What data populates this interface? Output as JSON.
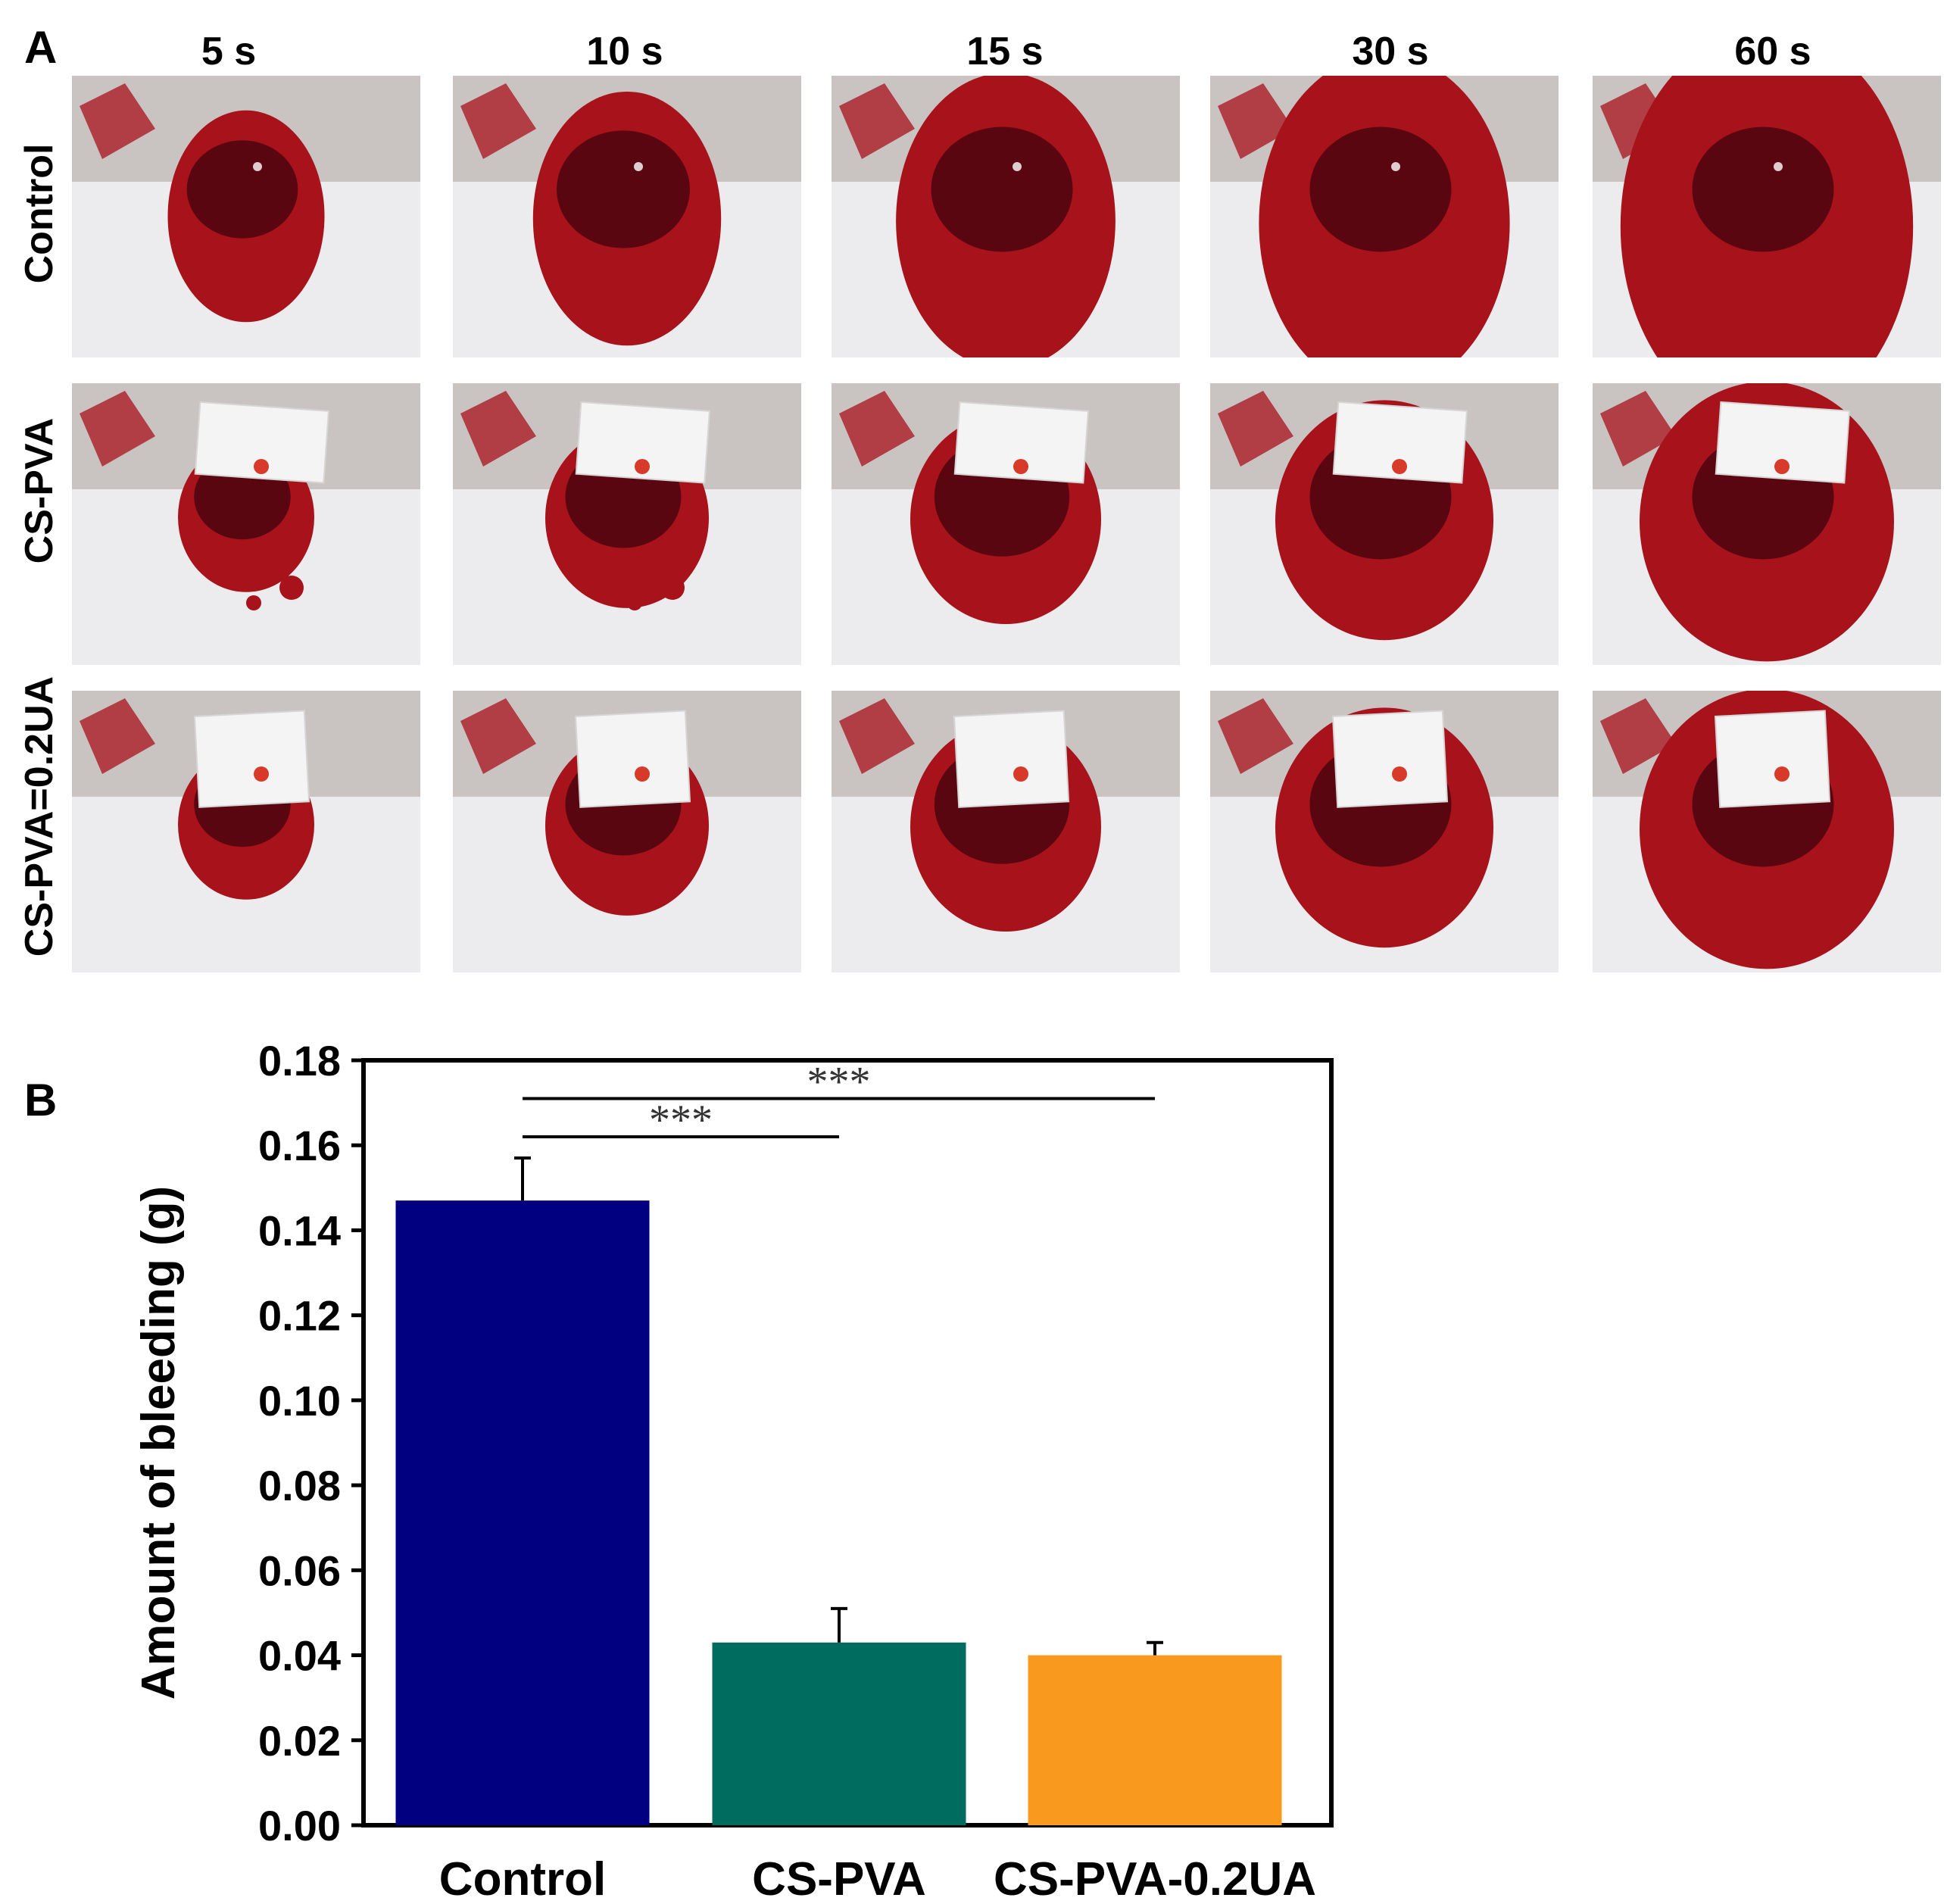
{
  "panel_a": {
    "label": "A",
    "time_labels": [
      "5 s",
      "10 s",
      "15 s",
      "30 s",
      "60 s"
    ],
    "row_labels": [
      "Control",
      "CS-PVA",
      "CS-PVA=0.2UA"
    ]
  },
  "panel_b": {
    "label": "B"
  },
  "colors": {
    "control": "#000080",
    "cs_pva": "#006B5F",
    "cs_pva_ua": "#F99A1F",
    "blood": "#A8121B",
    "blood_dark": "#5A0610"
  },
  "chart_data": {
    "type": "bar",
    "categories": [
      "Control",
      "CS-PVA",
      "CS-PVA-0.2UA"
    ],
    "values": [
      0.147,
      0.043,
      0.04
    ],
    "errors": [
      0.01,
      0.008,
      0.003
    ],
    "ylabel": "Amount of bleeding (g)",
    "xlabel": "",
    "ylim": [
      0.0,
      0.18
    ],
    "yticks": [
      "0.00",
      "0.02",
      "0.04",
      "0.06",
      "0.08",
      "0.10",
      "0.12",
      "0.14",
      "0.16",
      "0.18"
    ],
    "significance": [
      {
        "from": "Control",
        "to": "CS-PVA",
        "label": "***"
      },
      {
        "from": "Control",
        "to": "CS-PVA-0.2UA",
        "label": "***"
      }
    ],
    "grid": false
  }
}
